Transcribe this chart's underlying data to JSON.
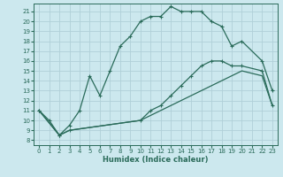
{
  "xlabel": "Humidex (Indice chaleur)",
  "bg_color": "#cce8ee",
  "grid_color": "#b0d0d8",
  "line_color": "#2a6b5a",
  "xlim": [
    -0.5,
    23.5
  ],
  "ylim": [
    7.5,
    21.8
  ],
  "xticks": [
    0,
    1,
    2,
    3,
    4,
    5,
    6,
    7,
    8,
    9,
    10,
    11,
    12,
    13,
    14,
    15,
    16,
    17,
    18,
    19,
    20,
    21,
    22,
    23
  ],
  "yticks": [
    8,
    9,
    10,
    11,
    12,
    13,
    14,
    15,
    16,
    17,
    18,
    19,
    20,
    21
  ],
  "series1_x": [
    0,
    1,
    2,
    3,
    4,
    5,
    6,
    7,
    8,
    9,
    10,
    11,
    12,
    13,
    14,
    15,
    16,
    17,
    18,
    19,
    20,
    22,
    23
  ],
  "series1_y": [
    11,
    10,
    8.5,
    9.5,
    11,
    14.5,
    12.5,
    15,
    17.5,
    18.5,
    20,
    20.5,
    20.5,
    21.5,
    21,
    21,
    21,
    20,
    19.5,
    17.5,
    18,
    16,
    13
  ],
  "series2_x": [
    0,
    2,
    3,
    10,
    11,
    12,
    13,
    14,
    15,
    16,
    17,
    18,
    19,
    20,
    22,
    23
  ],
  "series2_y": [
    11,
    8.5,
    9,
    10,
    11,
    11.5,
    12.5,
    13.5,
    14.5,
    15.5,
    16,
    16,
    15.5,
    15.5,
    15,
    11.5
  ],
  "series3_x": [
    0,
    2,
    3,
    10,
    11,
    12,
    13,
    14,
    15,
    16,
    17,
    18,
    19,
    20,
    22,
    23
  ],
  "series3_y": [
    11,
    8.5,
    9,
    10,
    10.5,
    11,
    11.5,
    12,
    12.5,
    13,
    13.5,
    14,
    14.5,
    15,
    14.5,
    11.5
  ]
}
